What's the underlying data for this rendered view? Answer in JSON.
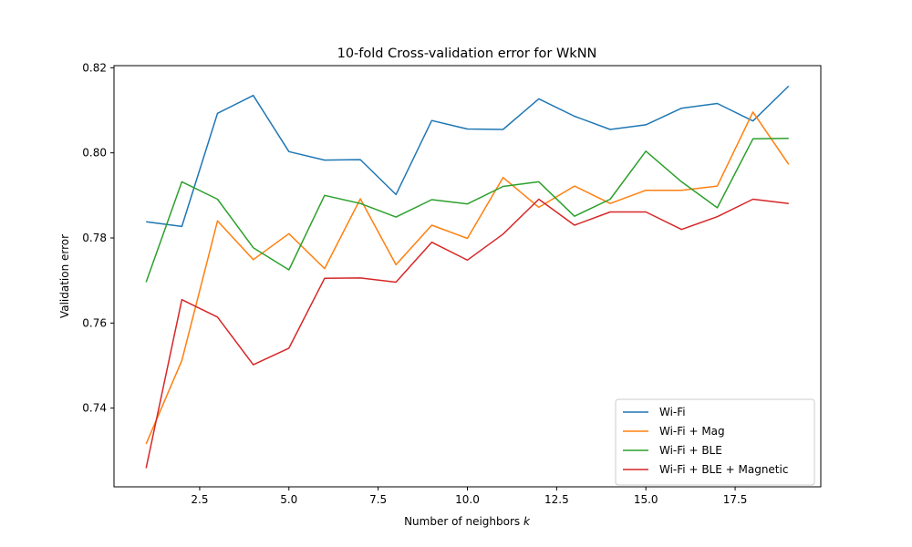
{
  "chart_data": {
    "type": "line",
    "title": "10-fold Cross-validation error for WkNN",
    "xlabel": "Number of neighbors",
    "xlabel_var": "k",
    "ylabel": "Validation error",
    "xlim": [
      0.1,
      19.9
    ],
    "ylim": [
      0.7215,
      0.8205
    ],
    "xticks": [
      2.5,
      5.0,
      7.5,
      10.0,
      12.5,
      15.0,
      17.5
    ],
    "xtick_labels": [
      "2.5",
      "5.0",
      "7.5",
      "10.0",
      "12.5",
      "15.0",
      "17.5"
    ],
    "yticks": [
      0.74,
      0.76,
      0.78,
      0.8,
      0.82
    ],
    "ytick_labels": [
      "0.74",
      "0.76",
      "0.78",
      "0.80",
      "0.82"
    ],
    "grid": false,
    "legend_position": "lower-right",
    "x": [
      1,
      2,
      3,
      4,
      5,
      6,
      7,
      8,
      9,
      10,
      11,
      12,
      13,
      14,
      15,
      16,
      17,
      18,
      19
    ],
    "series": [
      {
        "name": "Wi-Fi",
        "color": "#1f77b4",
        "values": [
          0.7838,
          0.7827,
          0.8093,
          0.8135,
          0.8003,
          0.7983,
          0.7984,
          0.7902,
          0.8076,
          0.8056,
          0.8055,
          0.8127,
          0.8086,
          0.8055,
          0.8066,
          0.8105,
          0.8116,
          0.8075,
          0.8157
        ]
      },
      {
        "name": "Wi-Fi + Mag",
        "color": "#ff7f0e",
        "values": [
          0.7316,
          0.7512,
          0.784,
          0.7749,
          0.781,
          0.7728,
          0.7892,
          0.7737,
          0.783,
          0.7799,
          0.7942,
          0.7872,
          0.7922,
          0.7881,
          0.7912,
          0.7912,
          0.7922,
          0.8096,
          0.7973
        ]
      },
      {
        "name": "Wi-Fi + BLE",
        "color": "#2ca02c",
        "values": [
          0.7696,
          0.7932,
          0.7891,
          0.7777,
          0.7725,
          0.79,
          0.7881,
          0.7849,
          0.789,
          0.788,
          0.7921,
          0.7932,
          0.7851,
          0.7891,
          0.8004,
          0.7932,
          0.7871,
          0.8033,
          0.8034
        ]
      },
      {
        "name": "Wi-Fi + BLE + Magnetic",
        "color": "#d62728",
        "values": [
          0.7259,
          0.7655,
          0.7614,
          0.7502,
          0.7541,
          0.7705,
          0.7706,
          0.7696,
          0.779,
          0.7748,
          0.7809,
          0.7891,
          0.783,
          0.7861,
          0.7861,
          0.782,
          0.785,
          0.7891,
          0.7881
        ]
      }
    ]
  }
}
